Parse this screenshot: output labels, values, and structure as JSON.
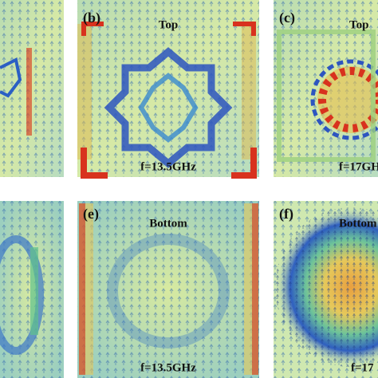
{
  "panels": [
    {
      "label": "(b)",
      "side": "Top",
      "frequency": "f=13.5GHz"
    },
    {
      "label": "(c)",
      "side": "Top",
      "frequency": "f=17GH"
    },
    {
      "label": "(e)",
      "side": "Bottom",
      "frequency": "f=13.5GHz"
    },
    {
      "label": "(f)",
      "side": "Bottom",
      "frequency": "f=17"
    }
  ]
}
